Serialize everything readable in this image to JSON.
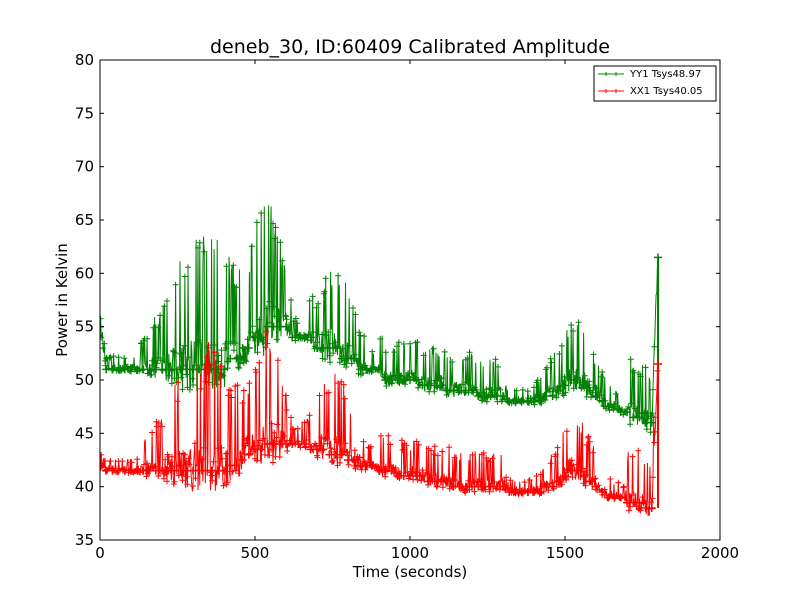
{
  "chart_data": {
    "type": "line",
    "title": "deneb_30, ID:60409 Calibrated Amplitude",
    "xlabel": "Time (seconds)",
    "ylabel": "Power in Kelvin",
    "xlim": [
      0,
      2000
    ],
    "ylim": [
      35,
      80
    ],
    "x_ticks": [
      0,
      500,
      1000,
      1500,
      2000
    ],
    "y_ticks": [
      35,
      40,
      45,
      50,
      55,
      60,
      65,
      70,
      75,
      80
    ],
    "grid": false,
    "legend_position": "top-right",
    "marker": "+",
    "series": [
      {
        "name": "YY1 Tsys48.97",
        "color": "#008000",
        "x": [
          0,
          20,
          40,
          60,
          80,
          100,
          120,
          140,
          160,
          180,
          200,
          220,
          240,
          260,
          280,
          300,
          320,
          340,
          360,
          380,
          400,
          420,
          440,
          460,
          480,
          500,
          520,
          540,
          560,
          580,
          600,
          620,
          640,
          660,
          680,
          700,
          720,
          740,
          760,
          780,
          800,
          820,
          840,
          860,
          880,
          900,
          920,
          940,
          960,
          980,
          1000,
          1020,
          1040,
          1060,
          1080,
          1100,
          1120,
          1140,
          1160,
          1180,
          1200,
          1220,
          1240,
          1260,
          1280,
          1300,
          1320,
          1340,
          1360,
          1380,
          1400,
          1420,
          1440,
          1460,
          1480,
          1500,
          1520,
          1540,
          1560,
          1580,
          1600,
          1620,
          1640,
          1660,
          1680,
          1700,
          1720,
          1740,
          1760,
          1780,
          1800
        ],
        "y": [
          55,
          51,
          51,
          51,
          51,
          51,
          51,
          51,
          51,
          51,
          51,
          51,
          51,
          51,
          51,
          51,
          51,
          51,
          51,
          51,
          51,
          52,
          52,
          53,
          53,
          54,
          54,
          55,
          55,
          55,
          55,
          54,
          54,
          54,
          54,
          53,
          53,
          53,
          53,
          52,
          52,
          52,
          51,
          51,
          51,
          51,
          50,
          50,
          50,
          50,
          50,
          50,
          49.5,
          49.5,
          49.5,
          49.5,
          49,
          49,
          49,
          49,
          49,
          48.5,
          48.5,
          48.5,
          48.5,
          48.5,
          48,
          48,
          48,
          48,
          48,
          48,
          48.5,
          48.5,
          49,
          49.5,
          50,
          50,
          49.5,
          49,
          48.5,
          48,
          47.5,
          47.5,
          47,
          47,
          46.5,
          46.5,
          46,
          46,
          61.5
        ]
      },
      {
        "name": "XX1 Tsys40.05",
        "color": "#ff0000",
        "x": [
          0,
          20,
          40,
          60,
          80,
          100,
          120,
          140,
          160,
          180,
          200,
          220,
          240,
          260,
          280,
          300,
          320,
          340,
          360,
          380,
          400,
          420,
          440,
          460,
          480,
          500,
          520,
          540,
          560,
          580,
          600,
          620,
          640,
          660,
          680,
          700,
          720,
          740,
          760,
          780,
          800,
          820,
          840,
          860,
          880,
          900,
          920,
          940,
          960,
          980,
          1000,
          1020,
          1040,
          1060,
          1080,
          1100,
          1120,
          1140,
          1160,
          1180,
          1200,
          1220,
          1240,
          1260,
          1280,
          1300,
          1320,
          1340,
          1360,
          1380,
          1400,
          1420,
          1440,
          1460,
          1480,
          1500,
          1520,
          1540,
          1560,
          1580,
          1600,
          1620,
          1640,
          1660,
          1680,
          1700,
          1720,
          1740,
          1760,
          1780,
          1800
        ],
        "y": [
          42,
          41.5,
          41.5,
          41.5,
          41.5,
          41.5,
          41.5,
          41.5,
          41.5,
          41.5,
          41.5,
          41.5,
          41.5,
          41.5,
          41.5,
          41.5,
          41.5,
          41.5,
          41.5,
          41.5,
          41.5,
          42,
          42,
          42.5,
          43,
          43.5,
          43.5,
          44,
          44,
          44,
          44,
          44,
          44,
          44,
          43.5,
          43.5,
          43.5,
          43,
          43,
          43,
          42.5,
          42.5,
          42,
          42,
          42,
          41.5,
          41.5,
          41.5,
          41,
          41,
          41,
          41,
          41,
          40.5,
          40.5,
          40.5,
          40.5,
          40,
          40,
          40,
          40,
          40,
          40,
          40,
          40,
          40,
          39.5,
          39.5,
          39.5,
          39.5,
          39.5,
          39.5,
          40,
          40,
          40.5,
          41,
          41.5,
          41.5,
          41,
          40.5,
          40,
          39.5,
          39,
          39,
          39,
          38.5,
          38.5,
          38.5,
          38,
          38,
          51.5
        ]
      }
    ]
  }
}
